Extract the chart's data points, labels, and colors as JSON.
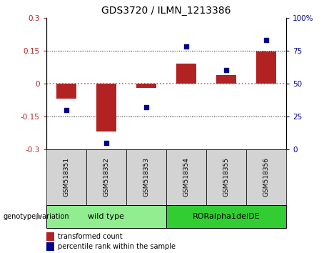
{
  "title": "GDS3720 / ILMN_1213386",
  "samples": [
    "GSM518351",
    "GSM518352",
    "GSM518353",
    "GSM518354",
    "GSM518355",
    "GSM518356"
  ],
  "bar_values": [
    -0.07,
    -0.22,
    -0.02,
    0.09,
    0.04,
    0.145
  ],
  "percentile_values": [
    30,
    5,
    32,
    78,
    60,
    83
  ],
  "ylim_left": [
    -0.3,
    0.3
  ],
  "ylim_right": [
    0,
    100
  ],
  "yticks_left": [
    -0.3,
    -0.15,
    0,
    0.15,
    0.3
  ],
  "yticks_right": [
    0,
    25,
    50,
    75,
    100
  ],
  "bar_color": "#b22222",
  "dot_color": "#00008b",
  "zero_line_color": "#e05050",
  "grid_line_color": "#000000",
  "group1_label": "wild type",
  "group2_label": "RORalpha1delDE",
  "group1_indices": [
    0,
    1,
    2
  ],
  "group2_indices": [
    3,
    4,
    5
  ],
  "group1_color": "#90ee90",
  "group2_color": "#32cd32",
  "sample_box_color": "#d3d3d3",
  "genotype_label": "genotype/variation",
  "legend_bar_label": "transformed count",
  "legend_dot_label": "percentile rank within the sample",
  "figsize": [
    4.61,
    3.54
  ],
  "dpi": 100
}
